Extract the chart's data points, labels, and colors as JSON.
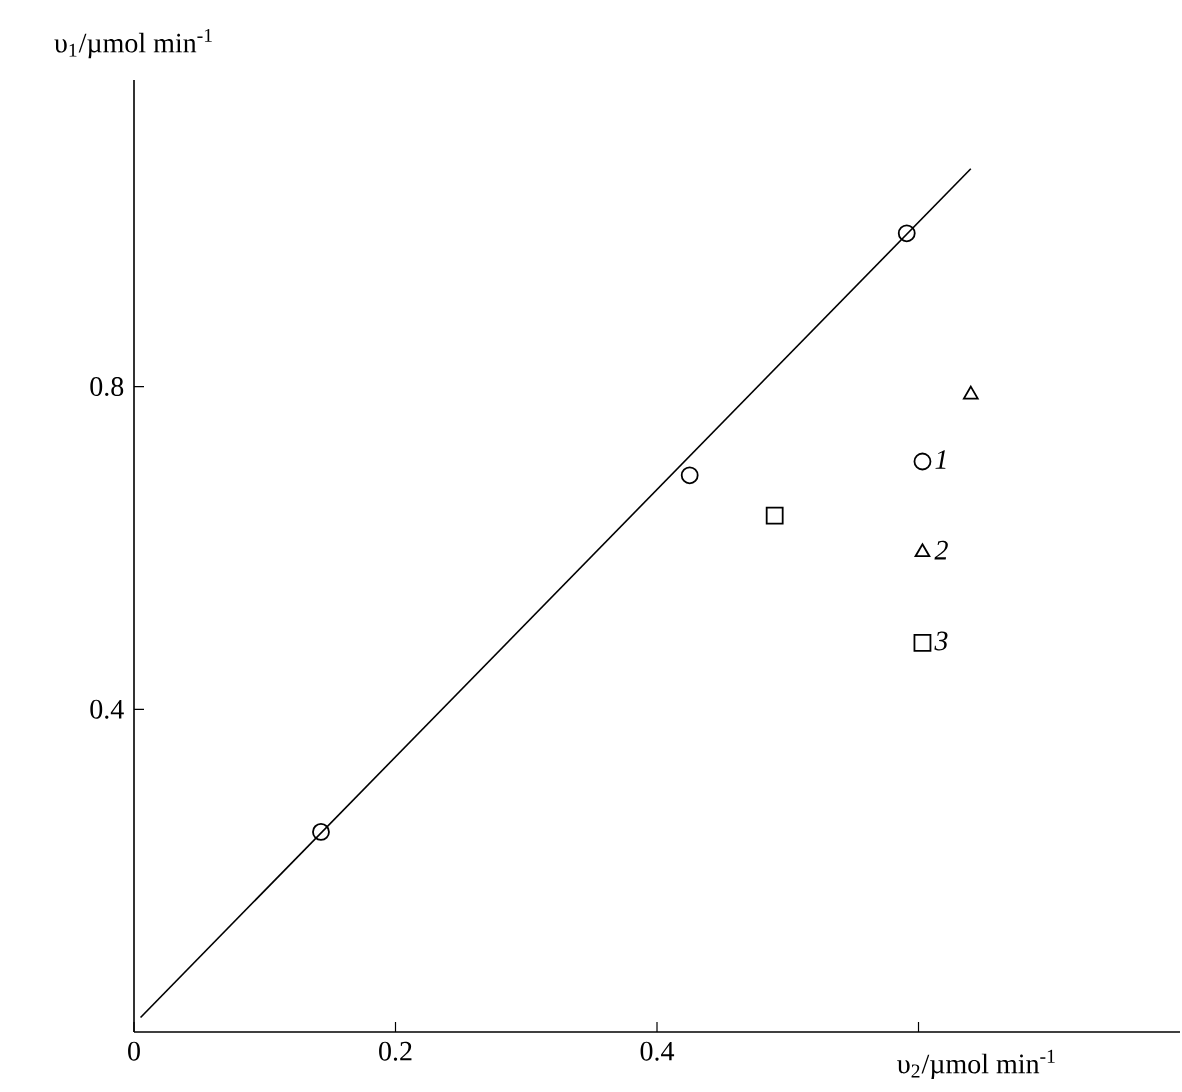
{
  "chart_data": {
    "type": "scatter",
    "xlabel": "υ$_{2}$/µmol min$^{-1}$",
    "ylabel": "υ$_{1}$/µmol min$^{-1}$",
    "xlim": [
      0,
      0.8
    ],
    "ylim": [
      0,
      1.18
    ],
    "xticks": [
      0,
      0.2,
      0.4,
      {
        "value": 0.6,
        "label": null
      }
    ],
    "yticks": [
      0.4,
      0.8
    ],
    "legend": "right",
    "series": [
      {
        "name": "*1*",
        "color": "#000000",
        "marker": "circle",
        "x": [
          0.143,
          0.425,
          0.591
        ],
        "values": [
          0.248,
          0.69,
          0.99
        ]
      },
      {
        "name": "*2*",
        "color": "#000000",
        "marker": "triangle",
        "x": [
          0.64
        ],
        "values": [
          0.79
        ]
      },
      {
        "name": "*3*",
        "color": "#000000",
        "marker": "square",
        "x": [
          0.49
        ],
        "values": [
          0.64
        ]
      },
      {
        "type": "line",
        "color": "#000000",
        "marker": "none",
        "x": [
          0.005,
          0.64
        ],
        "values": [
          0.018,
          1.07
        ]
      }
    ]
  }
}
